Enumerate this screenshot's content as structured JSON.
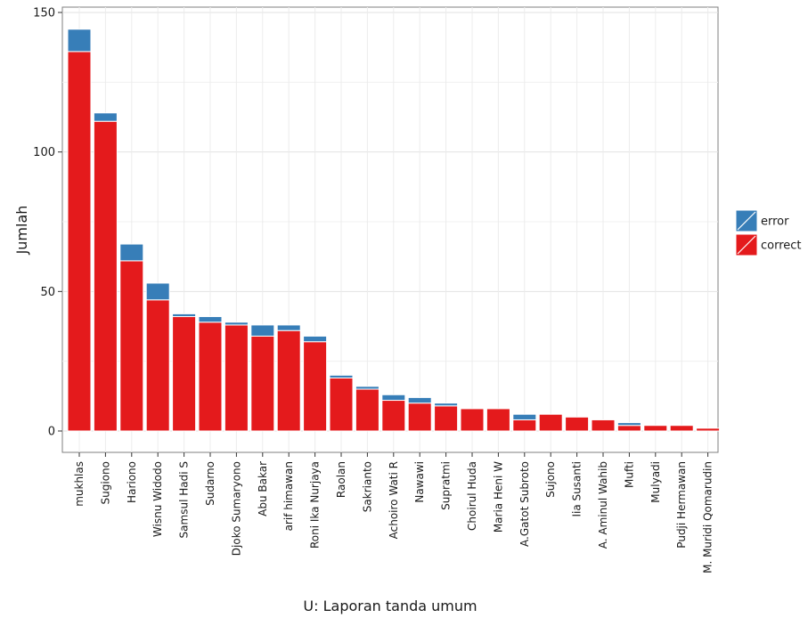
{
  "chart_data": {
    "type": "bar",
    "stacked": true,
    "xlabel": "U: Laporan tanda umum",
    "ylabel": "Jumlah",
    "ylim": [
      0,
      150
    ],
    "yticks": [
      0,
      50,
      100,
      150
    ],
    "grid": true,
    "legend_position": "right",
    "categories": [
      "mukhlas",
      "Sugiono",
      "Hariono",
      "Wisnu Widodo",
      "Samsul Hadi S",
      "Sudarno",
      "Djoko Sumaryono",
      "Abu  Bakar",
      "arif himawan",
      "Roni Ika Nurjaya",
      "Raolan",
      "Sakrianto",
      "Achoiro  Wati R",
      "Nawawi",
      "Supratmi",
      "Choirul  Huda",
      "Maria  Heni W",
      "A.Gatot Subroto",
      "Sujono",
      "Iia Susanti",
      "A. Aminul Wahib",
      "Mufti",
      "Mulyadi",
      "Pudji Hermawan",
      "M. Muridi Qomarudin"
    ],
    "series": [
      {
        "name": "correct",
        "color": "#e41a1c",
        "values": [
          136,
          111,
          61,
          47,
          41,
          39,
          38,
          34,
          36,
          32,
          19,
          15,
          11,
          10,
          9,
          8,
          8,
          4,
          6,
          5,
          4,
          2,
          2,
          2,
          1
        ]
      },
      {
        "name": "error",
        "color": "#377eb8",
        "values": [
          8,
          3,
          6,
          6,
          1,
          2,
          1,
          4,
          2,
          2,
          1,
          1,
          2,
          2,
          1,
          0,
          0,
          2,
          0,
          0,
          0,
          1,
          0,
          0,
          0
        ]
      }
    ],
    "legend": [
      "error",
      "correct"
    ]
  }
}
